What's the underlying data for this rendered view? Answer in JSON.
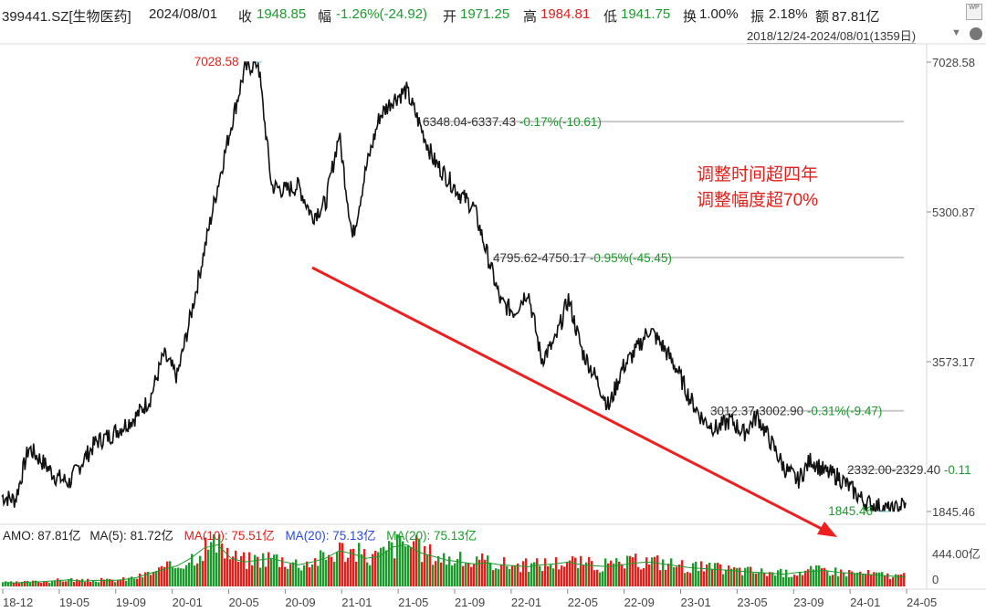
{
  "header": {
    "code": "399441.SZ[生物医药]",
    "date": "2024/08/01",
    "close_label": "收",
    "close_value": "1948.85",
    "change_label": "幅",
    "change_value": "-1.26%(-24.92)",
    "open_label": "开",
    "open_value": "1971.25",
    "high_label": "高",
    "high_value": "1984.81",
    "low_label": "低",
    "low_value": "1941.75",
    "turnover_label": "换",
    "turnover_value": "1.00%",
    "amplitude_label": "振",
    "amplitude_value": "2.18%",
    "amount_label": "额",
    "amount_value": "87.81亿",
    "range": "2018/12/24-2024/08/01(1359日)",
    "badge": "WP"
  },
  "annotation": {
    "line1": "调整时间超四年",
    "line2": "调整幅度超70%"
  },
  "amo_bar": {
    "amo": "AMO: 87.81亿",
    "ma5": "MA(5): 81.72亿",
    "ma10": "MA(10): 75.51亿",
    "ma20": "MA(20): 75.13亿",
    "ma20b": "MA(20): 75.13亿"
  },
  "colors": {
    "price_line": "#111111",
    "trend_arrow": "#ee1f1f",
    "up_volume": "#e0201b",
    "down_volume": "#1a9b2b",
    "ma_blue": "#2a4bd7",
    "ma_green": "#1a9b2b",
    "label_red": "#e0201b",
    "label_green": "#1a9b2b"
  },
  "chart_data": {
    "type": "line",
    "x_ticks": [
      "18-12",
      "19-05",
      "19-09",
      "20-01",
      "20-05",
      "20-09",
      "21-01",
      "21-05",
      "21-09",
      "22-01",
      "22-05",
      "22-09",
      "23-01",
      "23-05",
      "23-09",
      "24-01",
      "24-05"
    ],
    "y_ticks": [
      "7028.58",
      "5300.87",
      "3573.17",
      "1845.46"
    ],
    "ylim": [
      1845.46,
      7028.58
    ],
    "volume_ticks": [
      "444.00亿",
      "0"
    ],
    "volume_max": 444,
    "peak_label": "7028.58",
    "low_label": "1845.46",
    "price_series": [
      [
        "18-12",
        2020
      ],
      [
        "19-01",
        1980
      ],
      [
        "19-03",
        2580
      ],
      [
        "19-04",
        2420
      ],
      [
        "19-05",
        2250
      ],
      [
        "19-06",
        2180
      ],
      [
        "19-08",
        2430
      ],
      [
        "19-09",
        2650
      ],
      [
        "19-10",
        2720
      ],
      [
        "19-11",
        2830
      ],
      [
        "19-12",
        2950
      ],
      [
        "20-01",
        3150
      ],
      [
        "20-02",
        3650
      ],
      [
        "20-03",
        3400
      ],
      [
        "20-04",
        4100
      ],
      [
        "20-05",
        4850
      ],
      [
        "20-06",
        5600
      ],
      [
        "20-07",
        6300
      ],
      [
        "20-08",
        6950
      ],
      [
        "20-08b",
        7028.58
      ],
      [
        "20-09",
        5600
      ],
      [
        "20-10",
        5550
      ],
      [
        "20-11",
        5600
      ],
      [
        "20-12",
        5250
      ],
      [
        "21-01",
        5400
      ],
      [
        "21-02",
        6200
      ],
      [
        "21-03",
        5000
      ],
      [
        "21-04",
        5800
      ],
      [
        "21-05",
        6400
      ],
      [
        "21-06",
        6600
      ],
      [
        "21-07",
        6700
      ],
      [
        "21-08",
        6300
      ],
      [
        "21-09",
        5900
      ],
      [
        "21-10",
        5700
      ],
      [
        "21-11",
        5500
      ],
      [
        "21-12",
        5350
      ],
      [
        "22-01",
        4800
      ],
      [
        "22-02",
        4250
      ],
      [
        "22-03",
        4150
      ],
      [
        "22-04",
        4400
      ],
      [
        "22-05",
        3600
      ],
      [
        "22-06",
        3800
      ],
      [
        "22-07",
        4300
      ],
      [
        "22-08",
        3700
      ],
      [
        "22-09",
        3400
      ],
      [
        "22-10",
        3050
      ],
      [
        "22-11",
        3500
      ],
      [
        "22-12",
        3700
      ],
      [
        "23-01",
        3950
      ],
      [
        "23-02",
        3750
      ],
      [
        "23-03",
        3500
      ],
      [
        "23-04",
        3150
      ],
      [
        "23-05",
        2900
      ],
      [
        "23-06",
        2800
      ],
      [
        "23-07",
        2900
      ],
      [
        "23-08",
        2750
      ],
      [
        "23-09",
        2950
      ],
      [
        "23-10",
        2650
      ],
      [
        "23-11",
        2350
      ],
      [
        "23-12",
        2200
      ],
      [
        "24-01",
        2450
      ],
      [
        "24-02",
        2300
      ],
      [
        "24-03",
        2250
      ],
      [
        "24-04",
        2100
      ],
      [
        "24-05",
        1950
      ],
      [
        "24-06",
        1900
      ],
      [
        "24-07",
        1845.46
      ],
      [
        "24-08",
        1948.85
      ]
    ],
    "reference_lines": [
      {
        "label": "6348.04-6337.43",
        "change": "-0.17%(-10.61)",
        "y": 6342
      },
      {
        "label": "4795.62-4750.17",
        "change": "-0.95%(-45.45)",
        "y": 4775
      },
      {
        "label": "3012.37-3002.90",
        "change": "-0.31%(-9.47)",
        "y": 3007
      },
      {
        "label": "2332.00-2329.40",
        "change": "-0.11",
        "y": 2330
      }
    ],
    "volume_series": [
      40,
      38,
      45,
      52,
      60,
      70,
      55,
      65,
      60,
      72,
      95,
      140,
      180,
      220,
      300,
      410,
      444,
      300,
      260,
      280,
      300,
      260,
      230,
      260,
      300,
      380,
      350,
      300,
      320,
      420,
      444,
      360,
      320,
      280,
      260,
      240,
      250,
      230,
      220,
      210,
      230,
      240,
      260,
      230,
      220,
      210,
      230,
      250,
      260,
      240,
      220,
      200,
      190,
      180,
      170,
      160,
      150,
      140,
      130,
      150,
      160,
      170,
      150,
      140,
      130,
      120,
      110,
      100
    ]
  }
}
